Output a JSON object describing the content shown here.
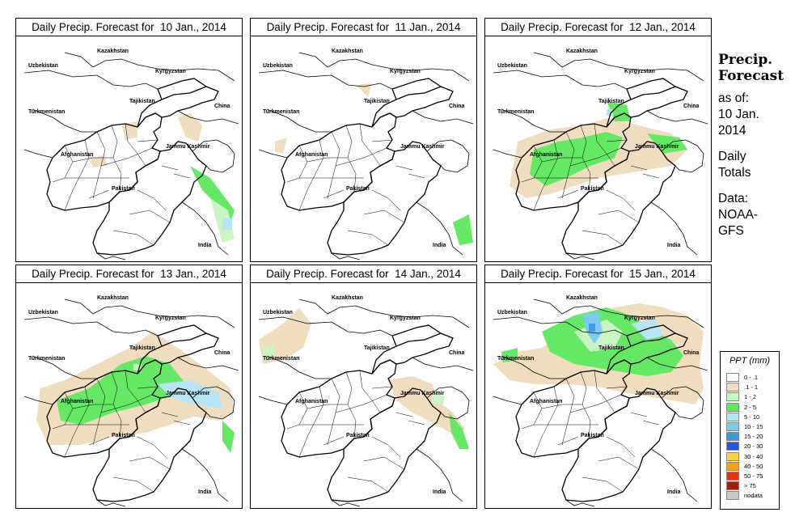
{
  "panels": [
    {
      "title": "Daily Precip. Forecast for  10 Jan., 2014"
    },
    {
      "title": "Daily Precip. Forecast for  11 Jan., 2014"
    },
    {
      "title": "Daily Precip. Forecast for  12 Jan., 2014"
    },
    {
      "title": "Daily Precip. Forecast for  13 Jan., 2014"
    },
    {
      "title": "Daily Precip. Forecast for  14 Jan., 2014"
    },
    {
      "title": "Daily Precip. Forecast for  15 Jan., 2014"
    }
  ],
  "map_labels": {
    "kazakhstan": "Kazakhstan",
    "uzbekistan": "Uzbekistan",
    "kyrgyzstan": "Kyrgyzstan",
    "tajikistan": "Tajikistan",
    "turkmenistan": "Turkmenistan",
    "china": "China",
    "afghanistan": "Afghanistan",
    "jammu_kashmir": "Jammu Kashmir",
    "pakistan": "Pakistan",
    "india": "India"
  },
  "sidebar": {
    "title_line1": "Precip.",
    "title_line2": "Forecast",
    "asof_line1": "as of:",
    "asof_line2": "10 Jan.",
    "asof_line3": "2014",
    "daily_line1": "Daily",
    "daily_line2": "Totals",
    "data_line1": "Data:",
    "data_line2": "NOAA-",
    "data_line3": "GFS"
  },
  "legend": {
    "title": "PPT (mm)",
    "items": [
      {
        "label": "0 - .1",
        "color": "#ffffff"
      },
      {
        "label": ".1 - 1",
        "color": "#f0dcbc"
      },
      {
        "label": "1 - 2",
        "color": "#c8f5c0"
      },
      {
        "label": "2 - 5",
        "color": "#5de85d"
      },
      {
        "label": "5 - 10",
        "color": "#b4e4f8"
      },
      {
        "label": "10 - 15",
        "color": "#78c8f0"
      },
      {
        "label": "15 - 20",
        "color": "#3c96e6"
      },
      {
        "label": "20 - 30",
        "color": "#1e5adc"
      },
      {
        "label": "30 - 40",
        "color": "#f5d246"
      },
      {
        "label": "40 - 50",
        "color": "#f0a01e"
      },
      {
        "label": "50 - 75",
        "color": "#e6320a"
      },
      {
        "label": "> 75",
        "color": "#a01e0a"
      },
      {
        "label": "nodata",
        "color": "#c8c8c8"
      }
    ]
  }
}
